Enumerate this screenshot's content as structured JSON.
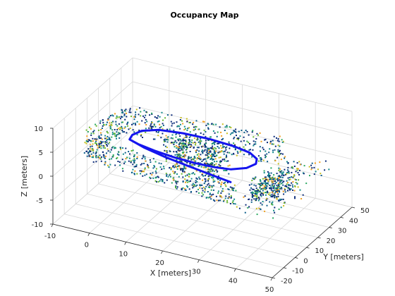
{
  "chart_data": {
    "type": "scatter3d",
    "title": "Occupancy Map",
    "xlabel": "X [meters]",
    "ylabel": "Y [meters]",
    "zlabel": "Z [meters]",
    "xlim": [
      -10,
      50
    ],
    "ylim": [
      -20,
      50
    ],
    "zlim": [
      -10,
      10
    ],
    "xticks": [
      -10,
      0,
      10,
      20,
      30,
      40,
      50
    ],
    "yticks": [
      -20,
      -10,
      0,
      10,
      20,
      30,
      40,
      50
    ],
    "zticks": [
      -10,
      -5,
      0,
      5,
      10
    ],
    "grid": true,
    "colors": {
      "trajectory": "#1515ee",
      "occupied": [
        "#0a2a78",
        "#0c5e8a",
        "#148c8c",
        "#2aa860",
        "#6ab830",
        "#c8c020",
        "#f0a020"
      ]
    },
    "trajectory": [
      [
        1,
        12,
        3
      ],
      [
        4,
        10,
        3
      ],
      [
        9,
        8,
        3
      ],
      [
        15,
        6.5,
        3
      ],
      [
        21,
        6,
        3
      ],
      [
        26,
        6.5,
        3
      ],
      [
        30,
        8,
        3
      ],
      [
        33,
        12,
        3
      ],
      [
        34,
        17,
        3
      ],
      [
        33,
        21,
        3
      ],
      [
        30,
        24.5,
        3
      ],
      [
        25,
        26.5,
        3
      ],
      [
        18,
        27.5,
        3
      ],
      [
        11,
        27,
        3
      ],
      [
        5,
        25,
        3
      ],
      [
        1.5,
        21,
        3
      ],
      [
        0.5,
        16,
        3
      ],
      [
        1,
        12,
        3
      ],
      [
        6,
        8.5,
        3
      ],
      [
        13,
        5,
        3
      ],
      [
        20,
        2.5,
        3
      ],
      [
        27,
        0,
        3
      ],
      [
        33,
        -2,
        3
      ]
    ]
  }
}
